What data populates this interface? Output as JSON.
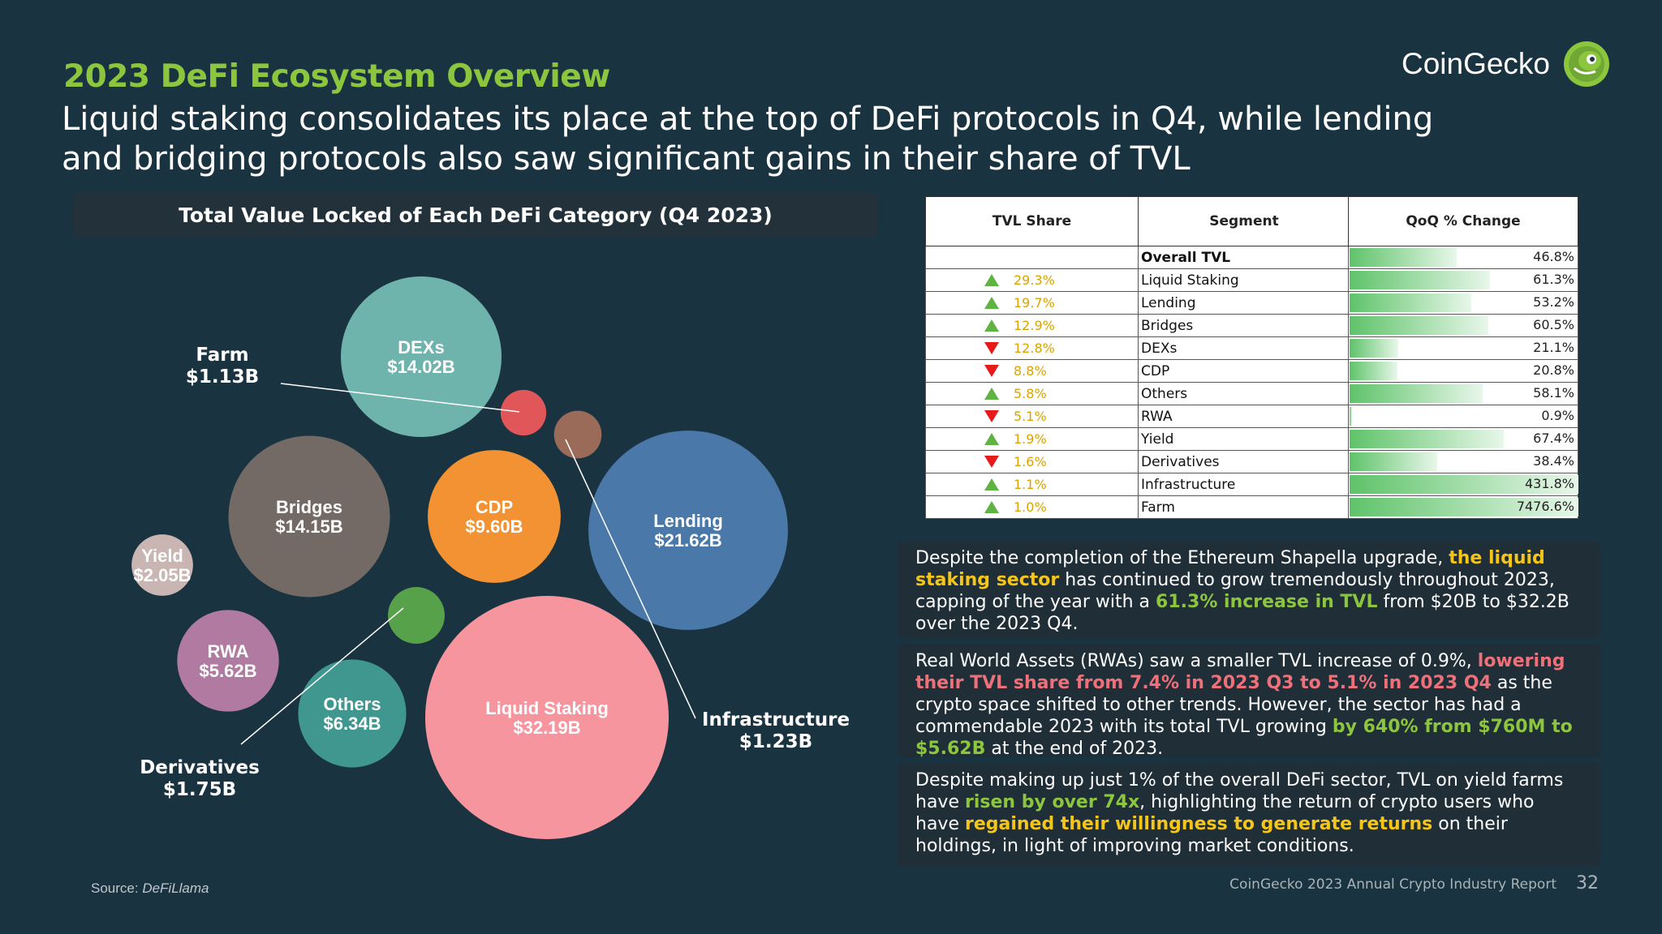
{
  "header": {
    "eyebrow": "2023 DeFi Ecosystem Overview",
    "headline": "Liquid staking consolidates its place at the top of DeFi protocols in Q4, while lending and bridging protocols also saw significant gains in their share of TVL",
    "brand": "CoinGecko"
  },
  "colors": {
    "accent_green": "#8cc63f",
    "highlight_yellow": "#f5c518",
    "highlight_red": "#f0707a",
    "background": "#1a3340"
  },
  "chart_data": {
    "type": "bubble",
    "title": "Total Value Locked of Each DeFi Category (Q4 2023)",
    "unit": "B",
    "series": [
      {
        "category": "Liquid Staking",
        "value": 32.19,
        "label": "$32.19B",
        "color": "#f7959f"
      },
      {
        "category": "Lending",
        "value": 21.62,
        "label": "$21.62B",
        "color": "#4a78a8"
      },
      {
        "category": "Bridges",
        "value": 14.15,
        "label": "$14.15B",
        "color": "#736a66"
      },
      {
        "category": "DEXs",
        "value": 14.02,
        "label": "$14.02B",
        "color": "#6fb3ad"
      },
      {
        "category": "CDP",
        "value": 9.6,
        "label": "$9.60B",
        "color": "#f39232"
      },
      {
        "category": "Others",
        "value": 6.34,
        "label": "$6.34B",
        "color": "#3f9790"
      },
      {
        "category": "RWA",
        "value": 5.62,
        "label": "$5.62B",
        "color": "#b07aa1"
      },
      {
        "category": "Yield",
        "value": 2.05,
        "label": "$2.05B",
        "color": "#c9b5b2"
      },
      {
        "category": "Derivatives",
        "value": 1.75,
        "label": "$1.75B",
        "color": "#57a14a"
      },
      {
        "category": "Infrastructure",
        "value": 1.23,
        "label": "$1.23B",
        "color": "#9b6b5a"
      },
      {
        "category": "Farm",
        "value": 1.13,
        "label": "$1.13B",
        "color": "#e15759"
      }
    ]
  },
  "table": {
    "headers": [
      "TVL Share",
      "Segment",
      "QoQ % Change"
    ],
    "rows": [
      {
        "share": "",
        "dir": "",
        "segment": "Overall TVL",
        "qoq": "46.8%",
        "qoq_value": 46.8,
        "bold": true
      },
      {
        "share": "29.3%",
        "dir": "up",
        "segment": "Liquid Staking",
        "qoq": "61.3%",
        "qoq_value": 61.3
      },
      {
        "share": "19.7%",
        "dir": "up",
        "segment": "Lending",
        "qoq": "53.2%",
        "qoq_value": 53.2
      },
      {
        "share": "12.9%",
        "dir": "up",
        "segment": "Bridges",
        "qoq": "60.5%",
        "qoq_value": 60.5
      },
      {
        "share": "12.8%",
        "dir": "down",
        "segment": "DEXs",
        "qoq": "21.1%",
        "qoq_value": 21.1
      },
      {
        "share": "8.8%",
        "dir": "down",
        "segment": "CDP",
        "qoq": "20.8%",
        "qoq_value": 20.8
      },
      {
        "share": "5.8%",
        "dir": "up",
        "segment": "Others",
        "qoq": "58.1%",
        "qoq_value": 58.1
      },
      {
        "share": "5.1%",
        "dir": "down",
        "segment": "RWA",
        "qoq": "0.9%",
        "qoq_value": 0.9
      },
      {
        "share": "1.9%",
        "dir": "up",
        "segment": "Yield",
        "qoq": "67.4%",
        "qoq_value": 67.4
      },
      {
        "share": "1.6%",
        "dir": "down",
        "segment": "Derivatives",
        "qoq": "38.4%",
        "qoq_value": 38.4
      },
      {
        "share": "1.1%",
        "dir": "up",
        "segment": "Infrastructure",
        "qoq": "431.8%",
        "qoq_value": 431.8
      },
      {
        "share": "1.0%",
        "dir": "up",
        "segment": "Farm",
        "qoq": "7476.6%",
        "qoq_value": 7476.6
      }
    ]
  },
  "insights": [
    {
      "parts": [
        {
          "text": "Despite the completion of the Ethereum Shapella upgrade, ",
          "style": ""
        },
        {
          "text": "the liquid staking sector",
          "style": "hl-yellow"
        },
        {
          "text": " has continued to grow tremendously throughout 2023, capping of the year with a ",
          "style": ""
        },
        {
          "text": "61.3% increase in TVL",
          "style": "hl-green"
        },
        {
          "text": " from $20B to $32.2B over the 2023 Q4.",
          "style": ""
        }
      ]
    },
    {
      "parts": [
        {
          "text": "Real World Assets (RWAs) saw a smaller TVL increase of 0.9%, ",
          "style": ""
        },
        {
          "text": "lowering their TVL share from 7.4% in 2023 Q3 to 5.1% in 2023 Q4",
          "style": "hl-red"
        },
        {
          "text": " as the crypto space shifted to other trends. However, the sector has had a commendable 2023 with its total TVL growing ",
          "style": ""
        },
        {
          "text": "by 640% from $760M to $5.62B",
          "style": "hl-green"
        },
        {
          "text": " at the end of 2023.",
          "style": ""
        }
      ]
    },
    {
      "parts": [
        {
          "text": "Despite making up just 1% of the overall DeFi sector, TVL on yield farms have ",
          "style": ""
        },
        {
          "text": "risen by over 74x",
          "style": "hl-green"
        },
        {
          "text": ", highlighting the return of crypto users who have ",
          "style": ""
        },
        {
          "text": "regained their willingness to generate returns",
          "style": "hl-yellow"
        },
        {
          "text": " on their holdings, in light of improving market conditions.",
          "style": ""
        }
      ]
    }
  ],
  "footer": {
    "source_prefix": "Source: ",
    "source_name": "DeFiLlama",
    "report": "CoinGecko 2023 Annual Crypto Industry Report",
    "page": "32"
  }
}
